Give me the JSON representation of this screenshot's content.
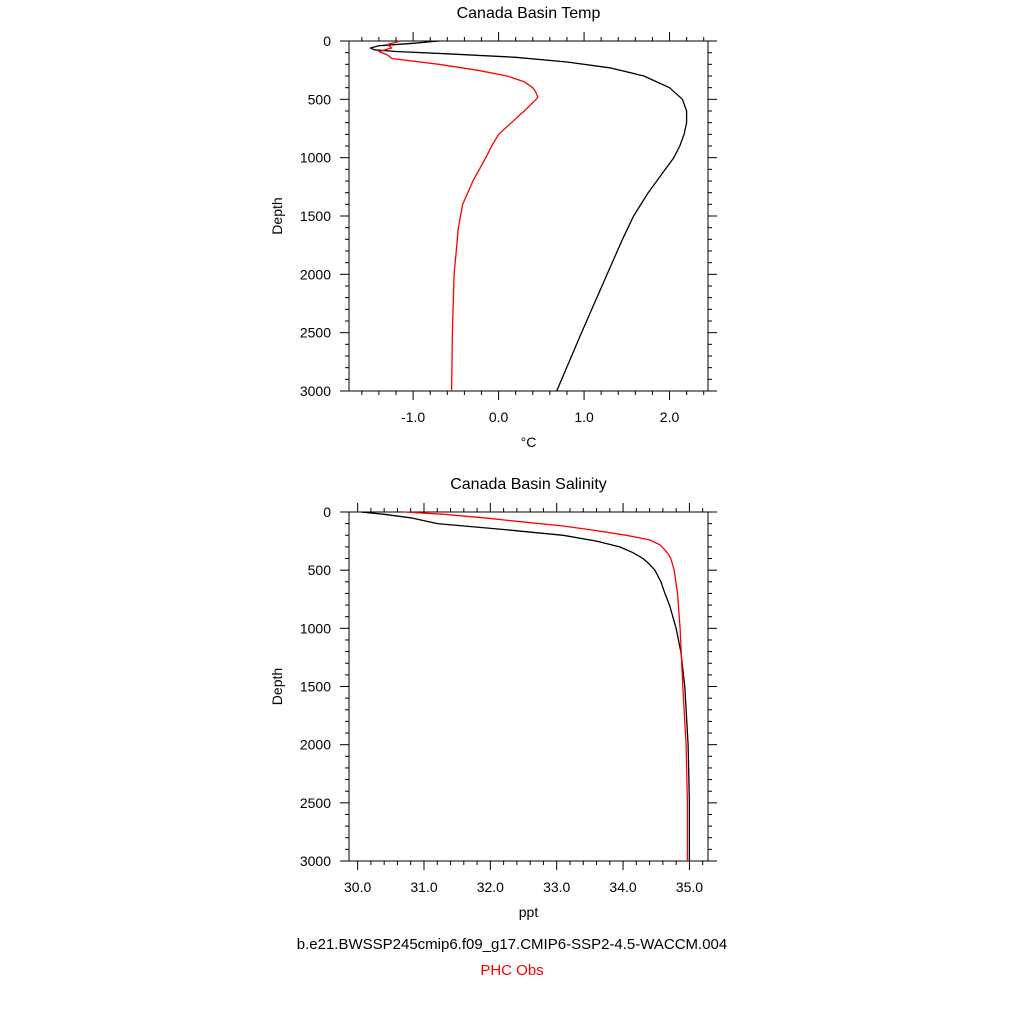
{
  "colors": {
    "model": "#000000",
    "obs": "#ff0000"
  },
  "legend": {
    "model": "b.e21.BWSSP245cmip6.f09_g17.CMIP6-SSP2-4.5-WACCM.004",
    "obs": "PHC Obs"
  },
  "chart_data": [
    {
      "type": "line",
      "title": "Canada Basin Temp",
      "xlabel": "°C",
      "ylabel": "Depth",
      "xlim": [
        -1.75,
        2.45
      ],
      "ylim": [
        3000,
        0
      ],
      "y_reversed": true,
      "xticks": [
        -1.0,
        0.0,
        1.0,
        2.0
      ],
      "xtick_labels": [
        "-1.0",
        "0.0",
        "1.0",
        "2.0"
      ],
      "yticks": [
        0,
        500,
        1000,
        1500,
        2000,
        2500,
        3000
      ],
      "ytick_labels": [
        "0",
        "500",
        "1000",
        "1500",
        "2000",
        "2500",
        "3000"
      ],
      "grid": false,
      "series": [
        {
          "key": "model",
          "depth": [
            0,
            20,
            40,
            60,
            75,
            90,
            110,
            140,
            180,
            230,
            300,
            400,
            500,
            600,
            700,
            800,
            900,
            1000,
            1100,
            1300,
            1500,
            1700,
            2000,
            2500,
            3000
          ],
          "values": [
            -0.7,
            -1.0,
            -1.4,
            -1.5,
            -1.45,
            -1.2,
            -0.6,
            0.2,
            0.8,
            1.3,
            1.7,
            2.0,
            2.15,
            2.2,
            2.2,
            2.17,
            2.12,
            2.05,
            1.95,
            1.75,
            1.58,
            1.45,
            1.27,
            0.97,
            0.68
          ]
        },
        {
          "key": "obs",
          "depth": [
            0,
            30,
            60,
            90,
            120,
            150,
            200,
            250,
            300,
            350,
            400,
            430,
            480,
            500,
            600,
            700,
            800,
            900,
            1000,
            1200,
            1400,
            1600,
            2000,
            2500,
            3000
          ],
          "values": [
            -1.15,
            -1.3,
            -1.25,
            -1.4,
            -1.3,
            -1.25,
            -0.7,
            -0.25,
            0.1,
            0.3,
            0.4,
            0.43,
            0.46,
            0.44,
            0.3,
            0.15,
            0.0,
            -0.08,
            -0.15,
            -0.3,
            -0.42,
            -0.47,
            -0.52,
            -0.54,
            -0.55
          ]
        }
      ]
    },
    {
      "type": "line",
      "title": "Canada Basin Salinity",
      "xlabel": "ppt",
      "ylabel": "Depth",
      "xlim": [
        29.87,
        35.28
      ],
      "ylim": [
        3000,
        0
      ],
      "y_reversed": true,
      "xticks": [
        30.0,
        31.0,
        32.0,
        33.0,
        34.0,
        35.0
      ],
      "xtick_labels": [
        "30.0",
        "31.0",
        "32.0",
        "33.0",
        "34.0",
        "35.0"
      ],
      "yticks": [
        0,
        500,
        1000,
        1500,
        2000,
        2500,
        3000
      ],
      "ytick_labels": [
        "0",
        "500",
        "1000",
        "1500",
        "2000",
        "2500",
        "3000"
      ],
      "grid": false,
      "series": [
        {
          "key": "model",
          "depth": [
            0,
            20,
            50,
            100,
            150,
            200,
            250,
            300,
            350,
            400,
            450,
            500,
            600,
            700,
            800,
            1000,
            1200,
            1500,
            2000,
            2500,
            3000
          ],
          "values": [
            30.05,
            30.4,
            30.8,
            31.2,
            32.2,
            33.1,
            33.6,
            33.95,
            34.15,
            34.3,
            34.4,
            34.48,
            34.57,
            34.63,
            34.7,
            34.8,
            34.87,
            34.93,
            34.98,
            35.0,
            35.0
          ]
        },
        {
          "key": "obs",
          "depth": [
            0,
            20,
            50,
            80,
            120,
            160,
            200,
            240,
            280,
            320,
            360,
            400,
            500,
            700,
            1000,
            1500,
            2000,
            2500,
            3000
          ],
          "values": [
            30.7,
            31.3,
            31.9,
            32.4,
            33.1,
            33.6,
            34.05,
            34.4,
            34.55,
            34.62,
            34.68,
            34.72,
            34.77,
            34.82,
            34.86,
            34.9,
            34.95,
            34.97,
            34.97
          ]
        }
      ]
    }
  ]
}
